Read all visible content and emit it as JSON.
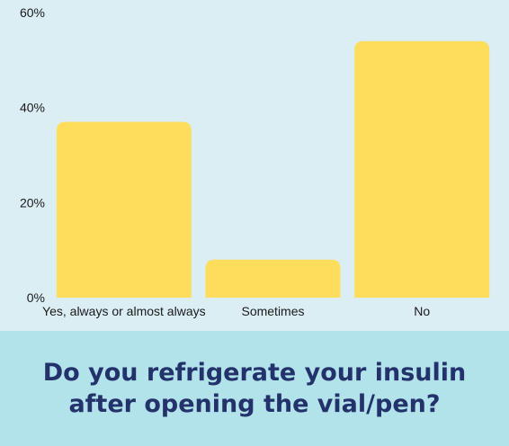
{
  "title": "Do you refrigerate your insulin after opening the vial/pen?",
  "colors": {
    "background": "#dbeef3",
    "title_band": "#b2e2ea",
    "title_text": "#24326b",
    "bar": "#ffdd5c"
  },
  "chart_data": {
    "type": "bar",
    "categories": [
      "Yes, always or almost always",
      "Sometimes",
      "No"
    ],
    "values": [
      37,
      8,
      54
    ],
    "ylim": [
      0,
      60
    ],
    "yticks": [
      0,
      20,
      40,
      60
    ],
    "ytick_labels": [
      "0%",
      "20%",
      "40%",
      "60%"
    ],
    "ylabel": "",
    "xlabel": "",
    "grid": false
  }
}
